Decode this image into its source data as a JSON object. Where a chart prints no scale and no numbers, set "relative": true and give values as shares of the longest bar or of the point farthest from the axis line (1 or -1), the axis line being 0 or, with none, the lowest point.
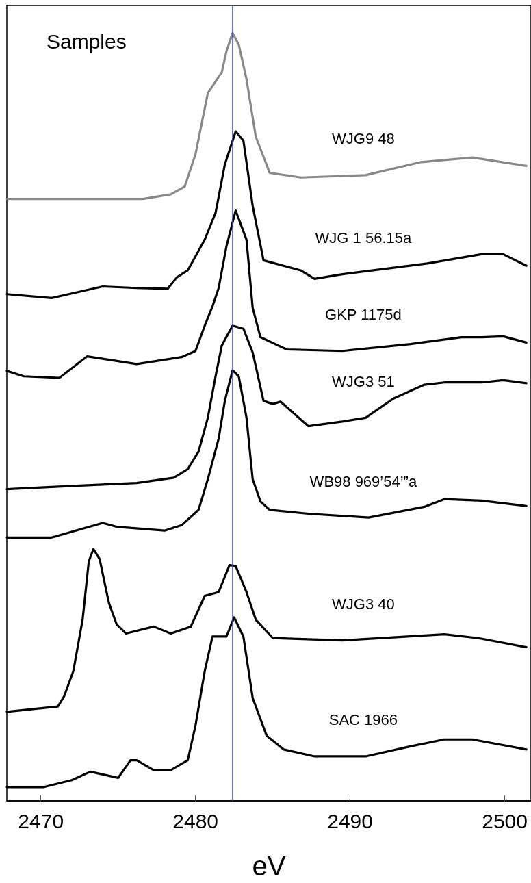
{
  "chart_data": {
    "type": "line",
    "relative": true,
    "xlabel": "eV",
    "annotations": [
      "Samples"
    ],
    "xlim": [
      2467.8,
      2501.7
    ],
    "xticks": [
      2470,
      2480,
      2490,
      2500
    ],
    "grid": false,
    "legend": false,
    "marker": "none",
    "line_style": "solid",
    "ref_lines": [
      {
        "axis": "x",
        "value": 2482.4,
        "color": "#3050b0"
      }
    ],
    "series": [
      {
        "name": "WJG9 48",
        "color": "#888888",
        "x": [
          2467.8,
          2472.9,
          2476.6,
          2478.4,
          2479.3,
          2480.0,
          2480.8,
          2481.7,
          2482.0,
          2482.4,
          2482.8,
          2483.3,
          2483.9,
          2484.8,
          2486.8,
          2491.0,
          2494.6,
          2497.9,
          2501.4
        ],
        "values": [
          0.784,
          0.784,
          0.784,
          0.79,
          0.8,
          0.842,
          0.922,
          0.949,
          0.976,
          1.0,
          0.985,
          0.94,
          0.865,
          0.818,
          0.812,
          0.815,
          0.832,
          0.838,
          0.827
        ]
      },
      {
        "name": "WJG 1 56.15a",
        "color": "#000000",
        "x": [
          2467.8,
          2470.7,
          2471.8,
          2474.0,
          2476.2,
          2478.2,
          2478.8,
          2479.5,
          2480.6,
          2481.3,
          2481.9,
          2482.6,
          2483.1,
          2483.7,
          2484.4,
          2486.8,
          2487.7,
          2489.5,
          2495.0,
          2498.5,
          2499.9,
          2501.4
        ],
        "values": [
          0.66,
          0.655,
          0.66,
          0.67,
          0.668,
          0.667,
          0.682,
          0.691,
          0.731,
          0.766,
          0.829,
          0.872,
          0.86,
          0.775,
          0.704,
          0.691,
          0.68,
          0.686,
          0.7,
          0.712,
          0.712,
          0.697
        ]
      },
      {
        "name": "GKP 1175d",
        "color": "#000000",
        "x": [
          2467.8,
          2468.9,
          2471.2,
          2473.0,
          2476.2,
          2479.1,
          2480.0,
          2480.6,
          2481.1,
          2481.5,
          2482.0,
          2482.6,
          2482.8,
          2483.3,
          2483.7,
          2484.2,
          2485.9,
          2489.5,
          2493.9,
          2497.2,
          2498.5,
          2499.9,
          2501.4
        ],
        "values": [
          0.56,
          0.553,
          0.551,
          0.579,
          0.569,
          0.578,
          0.586,
          0.619,
          0.644,
          0.668,
          0.722,
          0.769,
          0.758,
          0.731,
          0.642,
          0.604,
          0.588,
          0.586,
          0.595,
          0.604,
          0.604,
          0.605,
          0.597
        ]
      },
      {
        "name": "WJG3 51",
        "color": "#000000",
        "x": [
          2467.8,
          2471.8,
          2476.2,
          2478.6,
          2479.5,
          2480.2,
          2480.8,
          2481.3,
          2481.7,
          2482.4,
          2483.1,
          2483.7,
          2484.4,
          2485.0,
          2485.5,
          2486.4,
          2487.3,
          2489.5,
          2491.0,
          2492.8,
          2494.8,
          2496.1,
          2498.5,
          2499.9,
          2501.4
        ],
        "values": [
          0.406,
          0.41,
          0.414,
          0.421,
          0.432,
          0.455,
          0.499,
          0.553,
          0.593,
          0.619,
          0.615,
          0.584,
          0.521,
          0.517,
          0.52,
          0.504,
          0.488,
          0.494,
          0.499,
          0.524,
          0.542,
          0.545,
          0.545,
          0.548,
          0.544
        ]
      },
      {
        "name": "WB98 969’54’”a",
        "color": "#000000",
        "x": [
          2467.8,
          2470.7,
          2474.0,
          2474.9,
          2478.0,
          2479.1,
          2480.2,
          2480.8,
          2481.5,
          2481.9,
          2482.4,
          2482.8,
          2483.3,
          2483.7,
          2484.2,
          2484.8,
          2487.3,
          2491.2,
          2494.8,
          2496.1,
          2498.5,
          2501.4
        ],
        "values": [
          0.343,
          0.343,
          0.362,
          0.357,
          0.352,
          0.359,
          0.379,
          0.419,
          0.472,
          0.521,
          0.561,
          0.553,
          0.499,
          0.419,
          0.39,
          0.379,
          0.374,
          0.369,
          0.383,
          0.393,
          0.391,
          0.384
        ]
      },
      {
        "name": "WJG3 40",
        "color": "#000000",
        "x": [
          2467.8,
          2471.1,
          2471.5,
          2472.1,
          2472.7,
          2473.1,
          2473.4,
          2473.8,
          2474.4,
          2474.9,
          2475.5,
          2477.3,
          2478.4,
          2479.7,
          2480.6,
          2481.5,
          2482.2,
          2482.6,
          2483.3,
          2483.9,
          2485.0,
          2489.5,
          2496.1,
          2498.3,
          2501.4
        ],
        "values": [
          0.116,
          0.123,
          0.136,
          0.169,
          0.236,
          0.312,
          0.328,
          0.315,
          0.258,
          0.23,
          0.218,
          0.227,
          0.218,
          0.227,
          0.267,
          0.272,
          0.307,
          0.306,
          0.272,
          0.236,
          0.212,
          0.209,
          0.217,
          0.212,
          0.2
        ]
      },
      {
        "name": "SAC 1966",
        "color": "#000000",
        "x": [
          2467.8,
          2470.2,
          2472.0,
          2473.2,
          2475.0,
          2475.8,
          2476.2,
          2477.3,
          2478.4,
          2479.5,
          2480.0,
          2480.6,
          2481.1,
          2482.0,
          2482.5,
          2483.1,
          2483.7,
          2484.6,
          2485.7,
          2487.7,
          2491.0,
          2493.9,
          2496.1,
          2497.9,
          2501.4
        ],
        "values": [
          0.018,
          0.018,
          0.027,
          0.038,
          0.03,
          0.053,
          0.053,
          0.04,
          0.04,
          0.053,
          0.098,
          0.169,
          0.214,
          0.214,
          0.239,
          0.214,
          0.134,
          0.085,
          0.067,
          0.058,
          0.058,
          0.071,
          0.08,
          0.08,
          0.067
        ]
      }
    ]
  }
}
